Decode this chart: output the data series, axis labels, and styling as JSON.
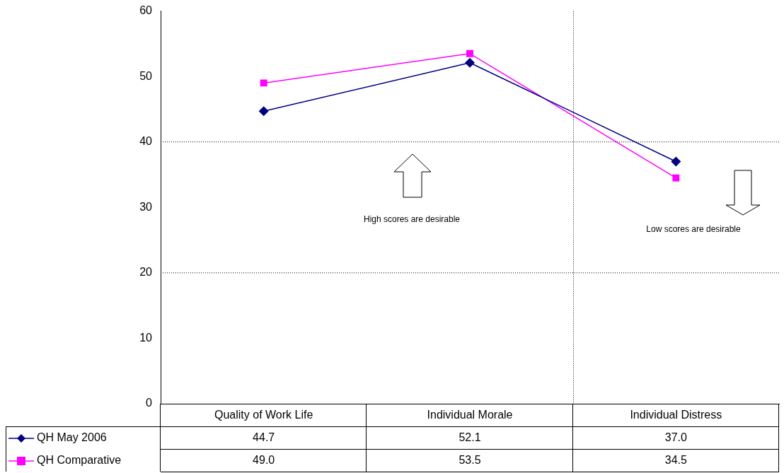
{
  "chart_data": {
    "type": "line",
    "categories": [
      "Quality of Work Life",
      "Individual Morale",
      "Individual Distress"
    ],
    "series": [
      {
        "name": "QH May 2006",
        "color": "#000080",
        "marker": "diamond",
        "values": [
          44.7,
          52.1,
          37.0
        ],
        "value_labels": [
          "44.7",
          "52.1",
          "37.0"
        ]
      },
      {
        "name": "QH Comparative",
        "color": "#ff00ff",
        "marker": "square",
        "values": [
          49.0,
          53.5,
          34.5
        ],
        "value_labels": [
          "49.0",
          "53.5",
          "34.5"
        ]
      }
    ],
    "ylim": [
      0,
      60
    ],
    "yticks": [
      0,
      10,
      20,
      30,
      40,
      50,
      60
    ],
    "grid": false,
    "legend": "bottom left",
    "ref_lines": [
      {
        "axis": "y",
        "value": 40,
        "line_style": "dotted"
      },
      {
        "axis": "y",
        "value": 20,
        "line_style": "dotted"
      }
    ],
    "annotations": [
      "High scores are desirable",
      "Low scores are desirable"
    ]
  }
}
